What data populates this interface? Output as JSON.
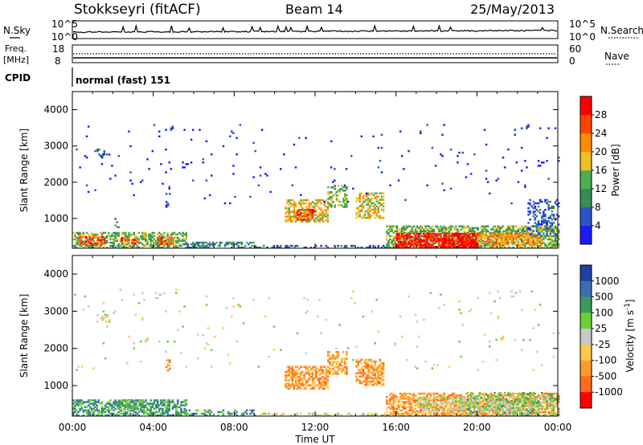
{
  "header": {
    "station": "Stokkseyri (fitACF)",
    "beam": "Beam 14",
    "date": "25/May/2013"
  },
  "status_panels": {
    "nsky_label": "N.Sky",
    "nsearch_label": "N.Search",
    "freq_label": "Freq.",
    "freq_unit": "[MHz]",
    "nave_label": "Nave",
    "cpid_label": "CPID",
    "cpid_text": "normal (fast) 151",
    "noise_ticks": [
      "10^5",
      "10^0"
    ],
    "freq_ticks": [
      "18",
      "8"
    ],
    "nave_ticks": [
      "60",
      "0"
    ]
  },
  "chart_data": [
    {
      "type": "heatmap",
      "title": "",
      "xlabel": "",
      "ylabel": "Slant Range [km]",
      "ylim": [
        180,
        4500
      ],
      "xlim": [
        0,
        24
      ],
      "y_ticks": [
        1000,
        2000,
        3000,
        4000
      ],
      "colorbar": {
        "label": "Power [dB]",
        "range": [
          0,
          32
        ],
        "ticks": [
          "4",
          "8",
          "12",
          "16",
          "20",
          "24",
          "28"
        ],
        "colors": [
          "#1a1aff",
          "#2a55c8",
          "#3a8a5a",
          "#4caf50",
          "#f0c020",
          "#ff8c00",
          "#ff4500",
          "#ff0000"
        ]
      },
      "regions": [
        {
          "t0": 0.0,
          "t1": 5.6,
          "r0": 180,
          "r1": 620,
          "level": 3,
          "density": 0.55
        },
        {
          "t0": 0.3,
          "t1": 1.6,
          "r0": 250,
          "r1": 500,
          "level": 6,
          "density": 0.5
        },
        {
          "t0": 2.4,
          "t1": 3.3,
          "r0": 300,
          "r1": 450,
          "level": 6,
          "density": 0.5
        },
        {
          "t0": 4.2,
          "t1": 5.0,
          "r0": 280,
          "r1": 470,
          "level": 6,
          "density": 0.5
        },
        {
          "t0": 1.2,
          "t1": 1.8,
          "r0": 2700,
          "r1": 2900,
          "level": 1,
          "density": 0.35
        },
        {
          "t0": 2.0,
          "t1": 2.3,
          "r0": 700,
          "r1": 1000,
          "level": 2,
          "density": 0.3
        },
        {
          "t0": 4.6,
          "t1": 4.8,
          "r0": 1300,
          "r1": 1700,
          "level": 1,
          "density": 0.35
        },
        {
          "t0": 5.5,
          "t1": 9.0,
          "r0": 180,
          "r1": 360,
          "level": 2,
          "density": 0.45
        },
        {
          "t0": 9.0,
          "t1": 16.0,
          "r0": 180,
          "r1": 260,
          "level": 1,
          "density": 0.35
        },
        {
          "t0": 10.5,
          "t1": 12.6,
          "r0": 900,
          "r1": 1500,
          "level": 4,
          "density": 0.55
        },
        {
          "t0": 11.0,
          "t1": 12.0,
          "r0": 950,
          "r1": 1250,
          "level": 6,
          "density": 0.5
        },
        {
          "t0": 12.6,
          "t1": 13.6,
          "r0": 1300,
          "r1": 1900,
          "level": 3,
          "density": 0.45
        },
        {
          "t0": 14.0,
          "t1": 15.4,
          "r0": 1000,
          "r1": 1700,
          "level": 4,
          "density": 0.5
        },
        {
          "t0": 15.5,
          "t1": 24.0,
          "r0": 180,
          "r1": 800,
          "level": 3,
          "density": 0.6
        },
        {
          "t0": 16.0,
          "t1": 20.0,
          "r0": 200,
          "r1": 600,
          "level": 7,
          "density": 0.75
        },
        {
          "t0": 20.0,
          "t1": 23.2,
          "r0": 250,
          "r1": 600,
          "level": 5,
          "density": 0.55
        },
        {
          "t0": 22.5,
          "t1": 24.0,
          "r0": 500,
          "r1": 1500,
          "level": 1,
          "density": 0.3
        },
        {
          "t0": 0.0,
          "t1": 24.0,
          "r0": 1400,
          "r1": 3600,
          "level": 0,
          "density": 0.012
        }
      ]
    },
    {
      "type": "heatmap",
      "title": "",
      "xlabel": "Time UT",
      "ylabel": "Slant Range [km]",
      "ylim": [
        180,
        4500
      ],
      "xlim": [
        0,
        24
      ],
      "y_ticks": [
        1000,
        2000,
        3000,
        4000
      ],
      "x_ticks": [
        "00:00",
        "04:00",
        "08:00",
        "12:00",
        "16:00",
        "20:00",
        "00:00"
      ],
      "colorbar": {
        "label": "Velocity [m s^-1]",
        "ticks": [
          "1000",
          "500",
          "100",
          "25",
          "-25",
          "-100",
          "-500",
          "-1000"
        ],
        "colors": [
          "#2040a0",
          "#3a6fb0",
          "#3c9a5c",
          "#6ccf3a",
          "#c8c8c8",
          "#ffc94a",
          "#ff9a30",
          "#ff6a1a",
          "#ff0000"
        ]
      },
      "regions": [
        {
          "t0": 0.0,
          "t1": 5.6,
          "r0": 180,
          "r1": 620,
          "level": 2,
          "density": 0.55
        },
        {
          "t0": 2.2,
          "t1": 3.4,
          "r0": 300,
          "r1": 600,
          "level": 3,
          "density": 0.5
        },
        {
          "t0": 1.2,
          "t1": 1.8,
          "r0": 2700,
          "r1": 2900,
          "level": 4,
          "density": 0.35
        },
        {
          "t0": 4.6,
          "t1": 4.8,
          "r0": 1300,
          "r1": 1700,
          "level": 6,
          "density": 0.35
        },
        {
          "t0": 5.5,
          "t1": 9.0,
          "r0": 180,
          "r1": 360,
          "level": 2,
          "density": 0.4
        },
        {
          "t0": 9.0,
          "t1": 16.0,
          "r0": 180,
          "r1": 260,
          "level": 4,
          "density": 0.35
        },
        {
          "t0": 10.5,
          "t1": 12.6,
          "r0": 900,
          "r1": 1500,
          "level": 6,
          "density": 0.6
        },
        {
          "t0": 12.6,
          "t1": 13.6,
          "r0": 1300,
          "r1": 1900,
          "level": 6,
          "density": 0.5
        },
        {
          "t0": 14.0,
          "t1": 15.4,
          "r0": 1000,
          "r1": 1700,
          "level": 6,
          "density": 0.55
        },
        {
          "t0": 15.5,
          "t1": 24.0,
          "r0": 180,
          "r1": 800,
          "level": 6,
          "density": 0.6
        },
        {
          "t0": 17.0,
          "t1": 23.0,
          "r0": 300,
          "r1": 700,
          "level": 4,
          "density": 0.45
        },
        {
          "t0": 19.5,
          "t1": 24.0,
          "r0": 200,
          "r1": 800,
          "level": 3,
          "density": 0.35
        },
        {
          "t0": 0.0,
          "t1": 24.0,
          "r0": 1400,
          "r1": 3600,
          "level": 4,
          "density": 0.012
        }
      ]
    }
  ]
}
